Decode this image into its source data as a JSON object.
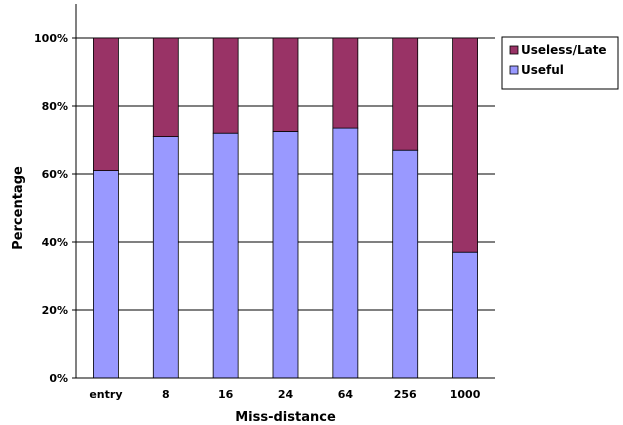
{
  "chart_data": {
    "type": "bar",
    "stacked": true,
    "categories": [
      "entry",
      "8",
      "16",
      "24",
      "64",
      "256",
      "1000"
    ],
    "series": [
      {
        "name": "Useful",
        "values": [
          61,
          71,
          72,
          72.5,
          73.5,
          67,
          37
        ],
        "color": "#9999ff"
      },
      {
        "name": "Useless/Late",
        "values": [
          39,
          29,
          28,
          27.5,
          26.5,
          33,
          63
        ],
        "color": "#993366"
      }
    ],
    "xlabel": "Miss-distance",
    "ylabel": "Percentage",
    "ylim": [
      0,
      100
    ],
    "yticks": [
      "0%",
      "20%",
      "40%",
      "60%",
      "80%",
      "100%"
    ],
    "grid": true,
    "legend": "top-right"
  }
}
